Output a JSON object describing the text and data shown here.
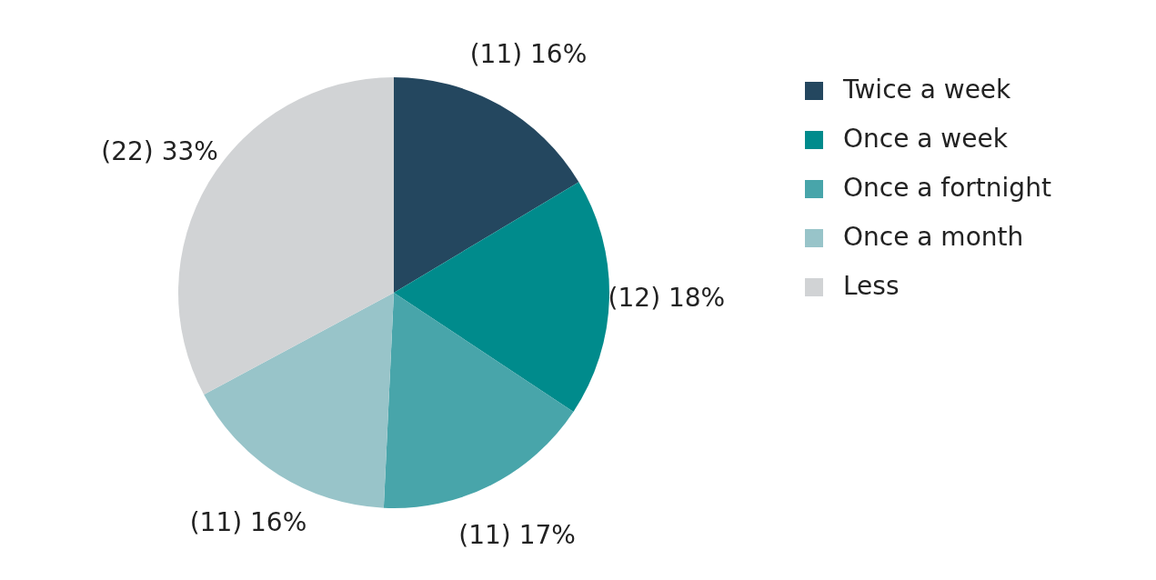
{
  "chart_data": {
    "type": "pie",
    "categories": [
      "Twice a week",
      "Once a week",
      "Once a fortnight",
      "Once a month",
      "Less"
    ],
    "values": [
      11,
      12,
      11,
      11,
      22
    ],
    "colors": [
      "#24475f",
      "#008b8c",
      "#48a5aa",
      "#98c4c9",
      "#d1d3d5"
    ],
    "value_labels": [
      "(11) 16%",
      "(12) 18%",
      "(11) 17%",
      "(11) 16%",
      "(22) 33%"
    ],
    "legend": "right"
  }
}
